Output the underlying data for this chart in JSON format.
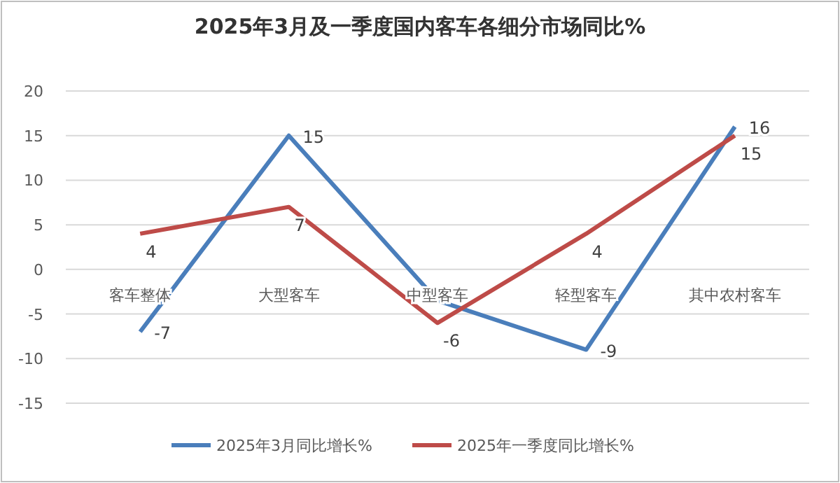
{
  "chart_data": {
    "type": "line",
    "title": "2025年3月及一季度国内客车各细分市场同比%",
    "categories": [
      "客车整体",
      "大型客车",
      "中型客车",
      "轻型客车",
      "其中农村客车"
    ],
    "series": [
      {
        "name": "2025年3月同比增长%",
        "color": "#4a7ebb",
        "values": [
          -7,
          15,
          -3.5,
          -9,
          16
        ],
        "value_labels": [
          "-7",
          "15",
          null,
          "-9",
          "16"
        ]
      },
      {
        "name": "2025年一季度同比增长%",
        "color": "#be4b48",
        "values": [
          4,
          7,
          -6,
          4,
          15
        ],
        "value_labels": [
          "4",
          "7",
          "-6",
          "4",
          "15"
        ]
      }
    ],
    "ylim": [
      -15,
      20
    ],
    "yticks": [
      -15,
      -10,
      -5,
      0,
      5,
      10,
      15,
      20
    ],
    "grid": "y",
    "legend": "bottom",
    "marker": "none",
    "line_style": "solid"
  }
}
